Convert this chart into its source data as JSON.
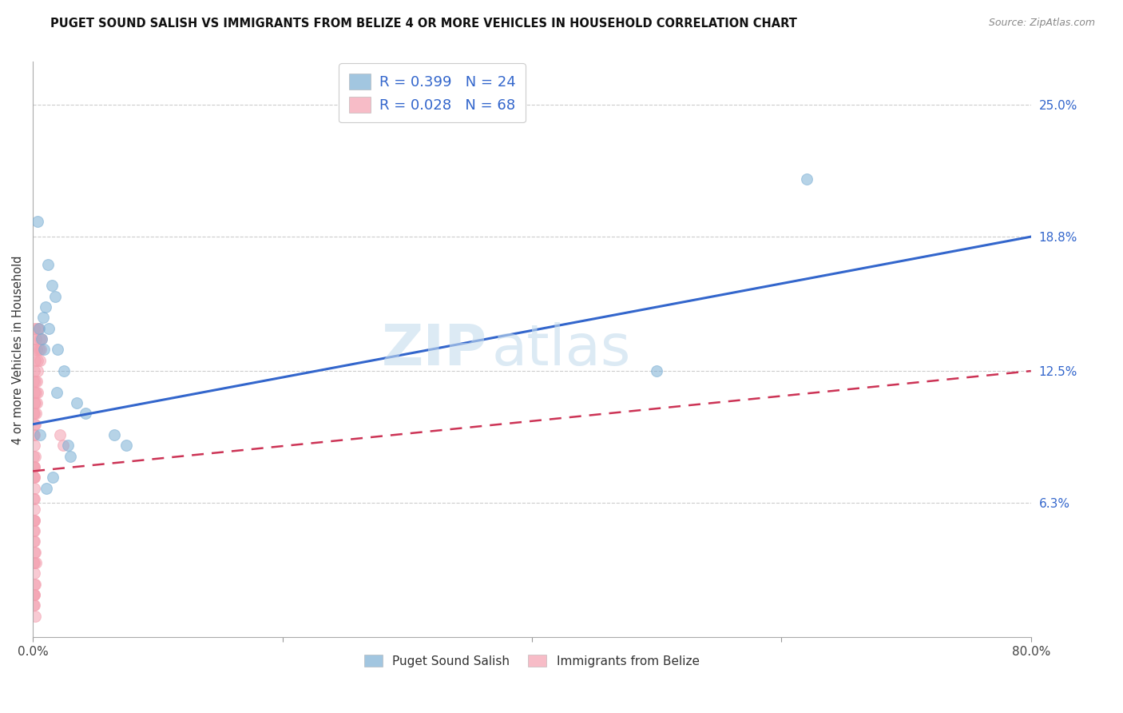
{
  "title": "PUGET SOUND SALISH VS IMMIGRANTS FROM BELIZE 4 OR MORE VEHICLES IN HOUSEHOLD CORRELATION CHART",
  "source": "Source: ZipAtlas.com",
  "ylabel": "4 or more Vehicles in Household",
  "xlim": [
    0.0,
    80.0
  ],
  "ylim": [
    0.0,
    27.0
  ],
  "right_yticklabels": [
    "25.0%",
    "18.8%",
    "12.5%",
    "6.3%"
  ],
  "right_ytickvals": [
    25.0,
    18.8,
    12.5,
    6.3
  ],
  "gridline_vals": [
    25.0,
    18.8,
    12.5,
    6.3
  ],
  "legend1_label": "R = 0.399   N = 24",
  "legend2_label": "R = 0.028   N = 68",
  "legend_bottom_label1": "Puget Sound Salish",
  "legend_bottom_label2": "Immigrants from Belize",
  "blue_color": "#7BAFD4",
  "pink_color": "#F4A0B0",
  "blue_scatter_edge": "#5588BB",
  "pink_scatter_edge": "#E07080",
  "blue_line_color": "#3366CC",
  "pink_line_color": "#CC3355",
  "background_color": "#ffffff",
  "blue_scatter_x": [
    0.5,
    0.8,
    1.2,
    1.5,
    1.8,
    2.0,
    2.5,
    0.7,
    1.0,
    1.3,
    0.6,
    0.9,
    3.5,
    4.2,
    1.9,
    2.8,
    6.5,
    7.5,
    3.0,
    50.0,
    62.0,
    0.4,
    1.6,
    1.1
  ],
  "blue_scatter_y": [
    14.5,
    15.0,
    17.5,
    16.5,
    16.0,
    13.5,
    12.5,
    14.0,
    15.5,
    14.5,
    9.5,
    13.5,
    11.0,
    10.5,
    11.5,
    9.0,
    9.5,
    9.0,
    8.5,
    12.5,
    21.5,
    19.5,
    7.5,
    7.0
  ],
  "pink_scatter_x": [
    0.05,
    0.1,
    0.15,
    0.2,
    0.25,
    0.3,
    0.35,
    0.4,
    0.45,
    0.5,
    0.55,
    0.6,
    0.65,
    0.7,
    0.05,
    0.1,
    0.15,
    0.2,
    0.25,
    0.3,
    0.35,
    0.4,
    0.05,
    0.1,
    0.15,
    0.2,
    0.25,
    0.3,
    0.05,
    0.1,
    0.15,
    0.2,
    0.05,
    0.1,
    0.05,
    0.1,
    0.15,
    0.05,
    0.1,
    0.15,
    0.2,
    0.05,
    0.1,
    0.15,
    0.05,
    0.1,
    0.15,
    0.05,
    0.1,
    0.15,
    0.05,
    0.1,
    0.15,
    0.05,
    0.1,
    0.15,
    0.2,
    0.25,
    2.2,
    2.4,
    0.05,
    0.1,
    0.15,
    0.2,
    0.05,
    0.1,
    0.15,
    0.2
  ],
  "pink_scatter_y": [
    14.0,
    14.5,
    13.5,
    13.0,
    14.0,
    13.5,
    14.5,
    13.0,
    14.5,
    13.5,
    13.0,
    14.0,
    13.5,
    14.0,
    12.0,
    12.5,
    11.5,
    12.0,
    11.5,
    12.0,
    12.5,
    11.5,
    10.5,
    11.0,
    10.5,
    11.0,
    10.5,
    11.0,
    9.5,
    10.0,
    9.5,
    10.0,
    8.5,
    9.0,
    7.5,
    8.0,
    7.5,
    8.0,
    7.5,
    8.0,
    8.5,
    6.5,
    7.0,
    6.5,
    5.5,
    6.0,
    5.5,
    5.0,
    5.5,
    5.0,
    4.5,
    4.5,
    4.0,
    3.5,
    3.0,
    3.5,
    4.0,
    3.5,
    9.5,
    9.0,
    2.0,
    2.5,
    2.0,
    2.5,
    1.5,
    2.0,
    1.5,
    1.0
  ],
  "blue_trendline_x": [
    0.0,
    80.0
  ],
  "blue_trendline_y": [
    10.0,
    18.8
  ],
  "pink_trendline_x": [
    0.0,
    80.0
  ],
  "pink_trendline_y": [
    7.8,
    12.5
  ],
  "watermark_text": "ZIPatlas",
  "watermark_color": "#C5DCEE",
  "watermark_alpha": 0.6
}
